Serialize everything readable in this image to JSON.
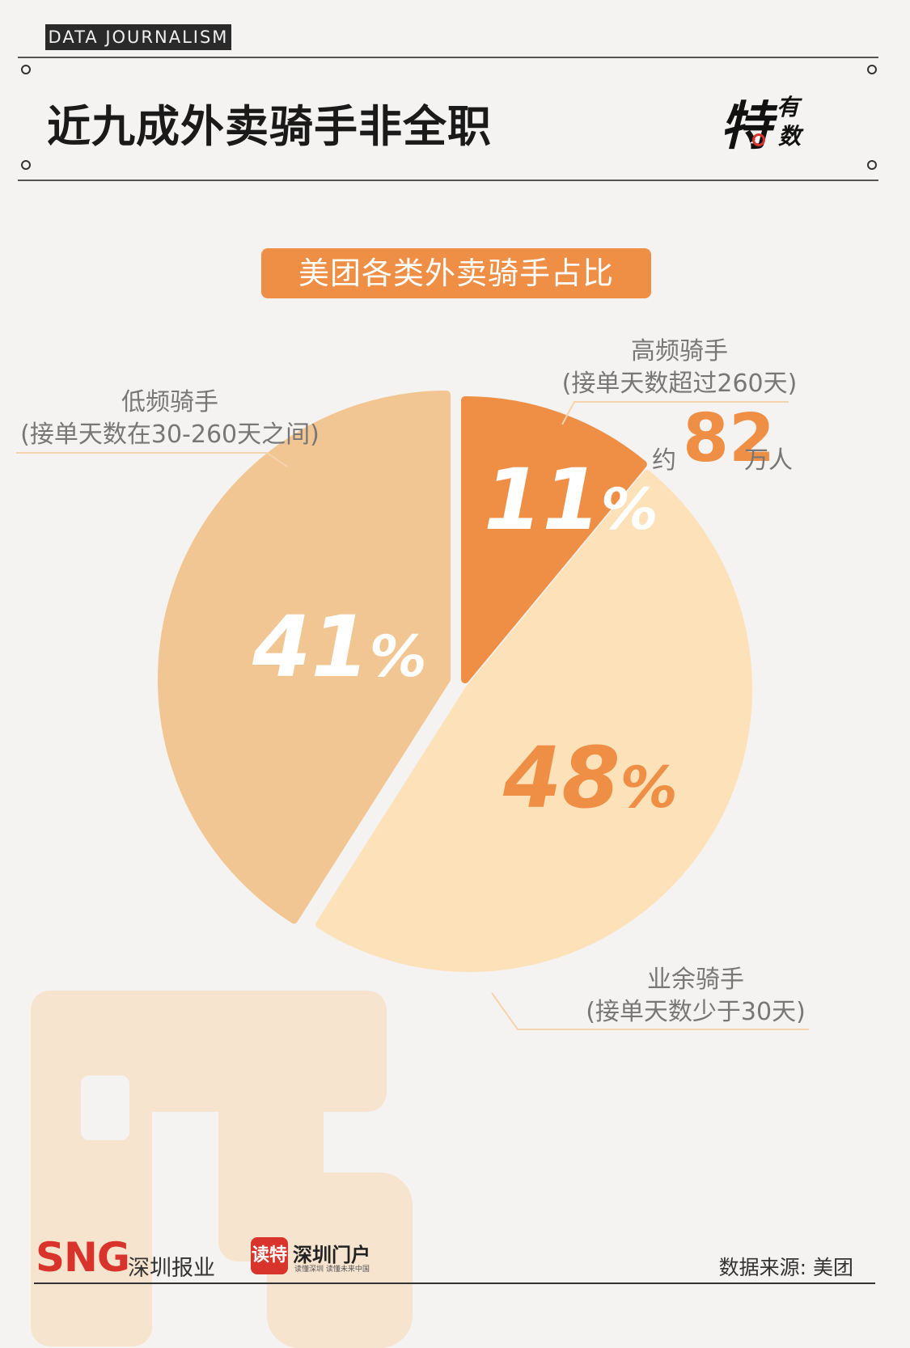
{
  "header": {
    "tag": "DATA JOURNALISM",
    "title": "近九成外卖骑手非全职",
    "logo_main": "特",
    "logo_top": "有",
    "logo_bottom": "数"
  },
  "colors": {
    "high": "#ef8f46",
    "amateur": "#fde1b9",
    "low": "#f2c692",
    "accent": "#ef8f46",
    "brand_red": "#d9342b"
  },
  "chart_data": {
    "type": "pie",
    "title": "美团各类外卖骑手占比",
    "slices": [
      {
        "name": "高频骑手",
        "detail": "(接单天数超过260天)",
        "value": 11,
        "label": "11",
        "color": "#ef8f46"
      },
      {
        "name": "业余骑手",
        "detail": "(接单天数少于30天)",
        "value": 48,
        "label": "48",
        "color": "#fde1b9"
      },
      {
        "name": "低频骑手",
        "detail": "(接单天数在30-260天之间)",
        "value": 41,
        "label": "41",
        "color": "#f2c692"
      }
    ],
    "percent_sign": "%",
    "annotation": {
      "prefix": "约",
      "number": "82",
      "suffix": "万人"
    }
  },
  "footer": {
    "sng": "SNG",
    "sng_name": "深圳报业",
    "badge": "读特",
    "portal": "深圳门户",
    "portal_sub": "读懂深圳 读懂未来中国",
    "source": "数据来源: 美团"
  }
}
